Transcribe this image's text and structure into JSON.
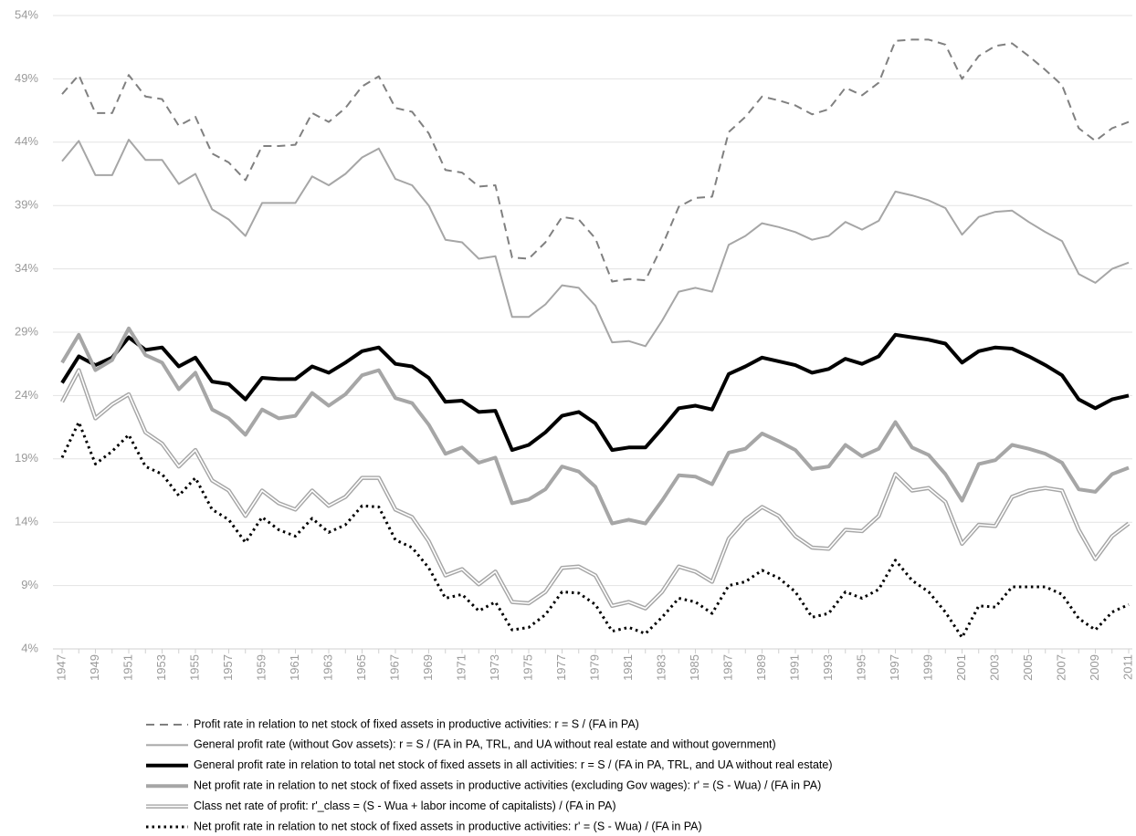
{
  "chart_data": {
    "type": "line",
    "categories": [
      "1947",
      null,
      "1949",
      null,
      "1951",
      null,
      "1953",
      null,
      "1955",
      null,
      "1957",
      null,
      "1959",
      null,
      "1961",
      null,
      "1963",
      null,
      "1965",
      null,
      "1967",
      null,
      "1969",
      null,
      "1971",
      null,
      "1973",
      null,
      "1975",
      null,
      "1977",
      null,
      "1979",
      null,
      "1981",
      null,
      "1983",
      null,
      "1985",
      null,
      "1987",
      null,
      "1989",
      null,
      "1991",
      null,
      "1993",
      null,
      "1995",
      null,
      "1997",
      null,
      "1999",
      null,
      "2001",
      null,
      "2003",
      null,
      "2005",
      null,
      "2007",
      null,
      "2009",
      null,
      "2011"
    ],
    "ylim": [
      4,
      54
    ],
    "yticks": [
      {
        "value": 4,
        "label": "4%"
      },
      {
        "value": 9,
        "label": "9%"
      },
      {
        "value": 14,
        "label": "14%"
      },
      {
        "value": 19,
        "label": "19%"
      },
      {
        "value": 24,
        "label": "24%"
      },
      {
        "value": 29,
        "label": "29%"
      },
      {
        "value": 34,
        "label": "34%"
      },
      {
        "value": 39,
        "label": "39%"
      },
      {
        "value": 44,
        "label": "44%"
      },
      {
        "value": 49,
        "label": "49%"
      },
      {
        "value": 54,
        "label": "54%"
      }
    ],
    "grid": true,
    "series": [
      {
        "name": "Profit rate in relation to net stock of fixed assets in productive activities: r = S / (FA in PA)",
        "color": "#808080",
        "style": "dashed",
        "values": [
          47.8,
          49.3,
          46.3,
          46.3,
          49.3,
          47.6,
          47.4,
          45.3,
          46,
          43.1,
          42.4,
          41,
          43.7,
          43.7,
          43.8,
          46.3,
          45.6,
          46.7,
          48.4,
          49.2,
          46.7,
          46.4,
          44.7,
          41.8,
          41.6,
          40.5,
          40.6,
          34.9,
          34.8,
          36.1,
          38.1,
          37.9,
          36.4,
          33,
          33.2,
          33.1,
          35.8,
          38.9,
          39.6,
          39.7,
          44.8,
          46,
          47.6,
          47.3,
          46.9,
          46.2,
          46.6,
          48.3,
          47.7,
          48.7,
          52,
          52.1,
          52.1,
          51.7,
          49,
          50.8,
          51.6,
          51.8,
          50.8,
          49.7,
          48.5,
          45.1,
          44.1,
          45.1,
          45.6
        ]
      },
      {
        "name": "General profit rate (without Gov assets): r = S / (FA in PA, TRL, and UA without real estate and without government)",
        "color": "#a6a6a6",
        "style": "solid",
        "values": [
          42.5,
          44.1,
          41.4,
          41.4,
          44.2,
          42.6,
          42.6,
          40.7,
          41.5,
          38.7,
          37.9,
          36.6,
          39.2,
          39.2,
          39.2,
          41.3,
          40.6,
          41.5,
          42.8,
          43.5,
          41.1,
          40.6,
          39,
          36.3,
          36.1,
          34.8,
          35,
          30.2,
          30.2,
          31.2,
          32.7,
          32.5,
          31.1,
          28.2,
          28.3,
          27.9,
          29.9,
          32.2,
          32.5,
          32.2,
          35.9,
          36.6,
          37.6,
          37.3,
          36.9,
          36.3,
          36.6,
          37.7,
          37.1,
          37.8,
          40.1,
          39.8,
          39.4,
          38.8,
          36.7,
          38.1,
          38.5,
          38.6,
          37.7,
          36.9,
          36.2,
          33.6,
          32.9,
          34,
          34.5
        ]
      },
      {
        "name": "General profit rate in relation to total net stock of fixed assets in all activities: r = S / (FA in PA, TRL, and UA without real estate)",
        "color": "#000000",
        "style": "thick",
        "values": [
          25,
          27.1,
          26.4,
          27,
          28.6,
          27.6,
          27.8,
          26.3,
          27,
          25.1,
          24.9,
          23.7,
          25.4,
          25.3,
          25.3,
          26.3,
          25.8,
          26.6,
          27.5,
          27.8,
          26.5,
          26.3,
          25.4,
          23.5,
          23.6,
          22.7,
          22.8,
          19.7,
          20.1,
          21.1,
          22.4,
          22.7,
          21.8,
          19.7,
          19.9,
          19.9,
          21.4,
          23,
          23.2,
          22.9,
          25.7,
          26.3,
          27,
          26.7,
          26.4,
          25.8,
          26.1,
          26.9,
          26.5,
          27.1,
          28.8,
          28.6,
          28.4,
          28.1,
          26.6,
          27.5,
          27.8,
          27.7,
          27.1,
          26.4,
          25.6,
          23.7,
          23,
          23.7,
          24
        ]
      },
      {
        "name": "Net profit rate in relation to net stock of fixed assets in productive activities (excluding Gov wages): r' = (S - Wua) / (FA in PA)",
        "color": "#a6a6a6",
        "style": "thick",
        "values": [
          26.6,
          28.8,
          26,
          26.8,
          29.3,
          27.2,
          26.6,
          24.5,
          25.8,
          22.9,
          22.2,
          20.9,
          22.9,
          22.2,
          22.4,
          24.2,
          23.2,
          24.1,
          25.6,
          26,
          23.8,
          23.4,
          21.7,
          19.4,
          19.9,
          18.7,
          19.1,
          15.5,
          15.8,
          16.6,
          18.4,
          18,
          16.8,
          13.9,
          14.2,
          13.9,
          15.7,
          17.7,
          17.6,
          17,
          19.5,
          19.8,
          21,
          20.4,
          19.7,
          18.2,
          18.4,
          20.1,
          19.2,
          19.8,
          21.9,
          19.9,
          19.3,
          17.8,
          15.7,
          18.6,
          18.9,
          20.1,
          19.8,
          19.4,
          18.7,
          16.6,
          16.4,
          17.8,
          18.3
        ]
      },
      {
        "name": "Class net rate of profit: r'_class = (S - Wua + labor income of capitalists) / (FA in PA)",
        "color": "#a6a6a6",
        "style": "double",
        "values": [
          23.5,
          26,
          22.2,
          23.3,
          24.1,
          21.1,
          20.2,
          18.4,
          19.7,
          17.3,
          16.5,
          14.5,
          16.5,
          15.5,
          15,
          16.5,
          15.3,
          16,
          17.5,
          17.5,
          15,
          14.4,
          12.5,
          9.8,
          10.3,
          9.1,
          10.1,
          7.7,
          7.6,
          8.5,
          10.4,
          10.5,
          9.8,
          7.4,
          7.7,
          7.2,
          8.5,
          10.5,
          10.1,
          9.3,
          12.7,
          14.2,
          15.2,
          14.5,
          12.9,
          12,
          11.9,
          13.4,
          13.3,
          14.5,
          17.8,
          16.5,
          16.7,
          15.6,
          12.3,
          13.8,
          13.7,
          16,
          16.5,
          16.7,
          16.5,
          13.4,
          11.1,
          12.9,
          13.9
        ]
      },
      {
        "name": "Net profit rate in relation to net stock of fixed assets in productive activities: r' = (S - Wua) / (FA in PA)",
        "color": "#000000",
        "style": "dotted",
        "values": [
          19.1,
          21.9,
          18.6,
          19.6,
          20.9,
          18.4,
          17.8,
          16.1,
          17.5,
          15,
          14.2,
          12.4,
          14.4,
          13.4,
          12.9,
          14.3,
          13.2,
          13.8,
          15.3,
          15.2,
          12.6,
          12,
          10.4,
          8,
          8.3,
          7,
          7.7,
          5.5,
          5.7,
          6.7,
          8.5,
          8.4,
          7.5,
          5.4,
          5.7,
          5.2,
          6.5,
          8,
          7.7,
          6.8,
          9,
          9.3,
          10.2,
          9.6,
          8.5,
          6.5,
          6.8,
          8.5,
          8,
          8.7,
          11,
          9.4,
          8.5,
          6.9,
          4.9,
          7.4,
          7.3,
          8.9,
          8.9,
          8.9,
          8.3,
          6.4,
          5.5,
          6.9,
          7.5
        ]
      }
    ]
  }
}
